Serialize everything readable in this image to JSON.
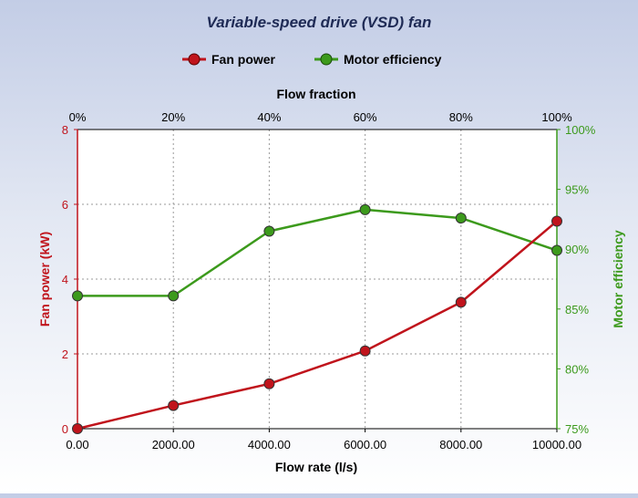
{
  "chart_data": {
    "type": "line",
    "title": "Variable-speed drive (VSD) fan",
    "legend_position": "top-center",
    "grid": true,
    "x": [
      0,
      2000,
      4000,
      6000,
      8000,
      10000
    ],
    "x_tick_labels": [
      "0.00",
      "2000.00",
      "4000.00",
      "6000.00",
      "8000.00",
      "10000.00"
    ],
    "xlabel": "Flow rate (l/s)",
    "xlim": [
      0,
      10000
    ],
    "x2label": "Flow fraction",
    "x2_tick_labels": [
      "0%",
      "20%",
      "40%",
      "60%",
      "80%",
      "100%"
    ],
    "ylabel": "Fan power (kW)",
    "ylim": [
      0,
      8
    ],
    "y_ticks": [
      0,
      2,
      4,
      6,
      8
    ],
    "y_tick_labels": [
      "0",
      "2",
      "4",
      "6",
      "8"
    ],
    "y2label": "Motor efficiency",
    "y2lim": [
      75,
      100
    ],
    "y2_ticks": [
      75,
      80,
      85,
      90,
      95,
      100
    ],
    "y2_tick_labels": [
      "75%",
      "80%",
      "85%",
      "90%",
      "95%",
      "100%"
    ],
    "series": [
      {
        "name": "Fan power",
        "axis": "left",
        "color": "#c0141c",
        "values": [
          0.0,
          0.62,
          1.2,
          2.08,
          3.38,
          5.55
        ]
      },
      {
        "name": "Motor efficiency",
        "axis": "right",
        "color": "#3c9a1c",
        "values": [
          86.1,
          86.1,
          91.5,
          93.3,
          92.6,
          89.9
        ]
      }
    ]
  }
}
